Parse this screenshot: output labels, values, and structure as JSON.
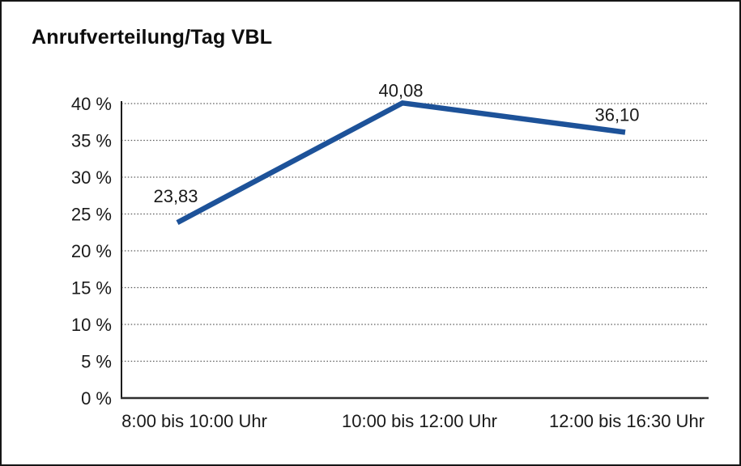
{
  "chart_data": {
    "type": "line",
    "title": "Anrufverteilung/Tag VBL",
    "categories": [
      "8:00 bis 10:00 Uhr",
      "10:00 bis 12:00 Uhr",
      "12:00 bis 16:30 Uhr"
    ],
    "values": [
      23.83,
      40.08,
      36.1
    ],
    "data_labels": [
      "23,83",
      "40,08",
      "36,10"
    ],
    "yticks": [
      0,
      5,
      10,
      15,
      20,
      25,
      30,
      35,
      40
    ],
    "ytick_labels": [
      "0 %",
      "5 %",
      "10 %",
      "15 %",
      "20 %",
      "25 %",
      "30 %",
      "35 %",
      "40 %"
    ],
    "ylim": [
      0,
      40
    ],
    "xlabel": "",
    "ylabel": "",
    "grid": "horizontal-dotted",
    "legend": "none",
    "line_color": "#1d5299",
    "text_color": "#1a1a1a",
    "background_color": "#ffffff"
  }
}
